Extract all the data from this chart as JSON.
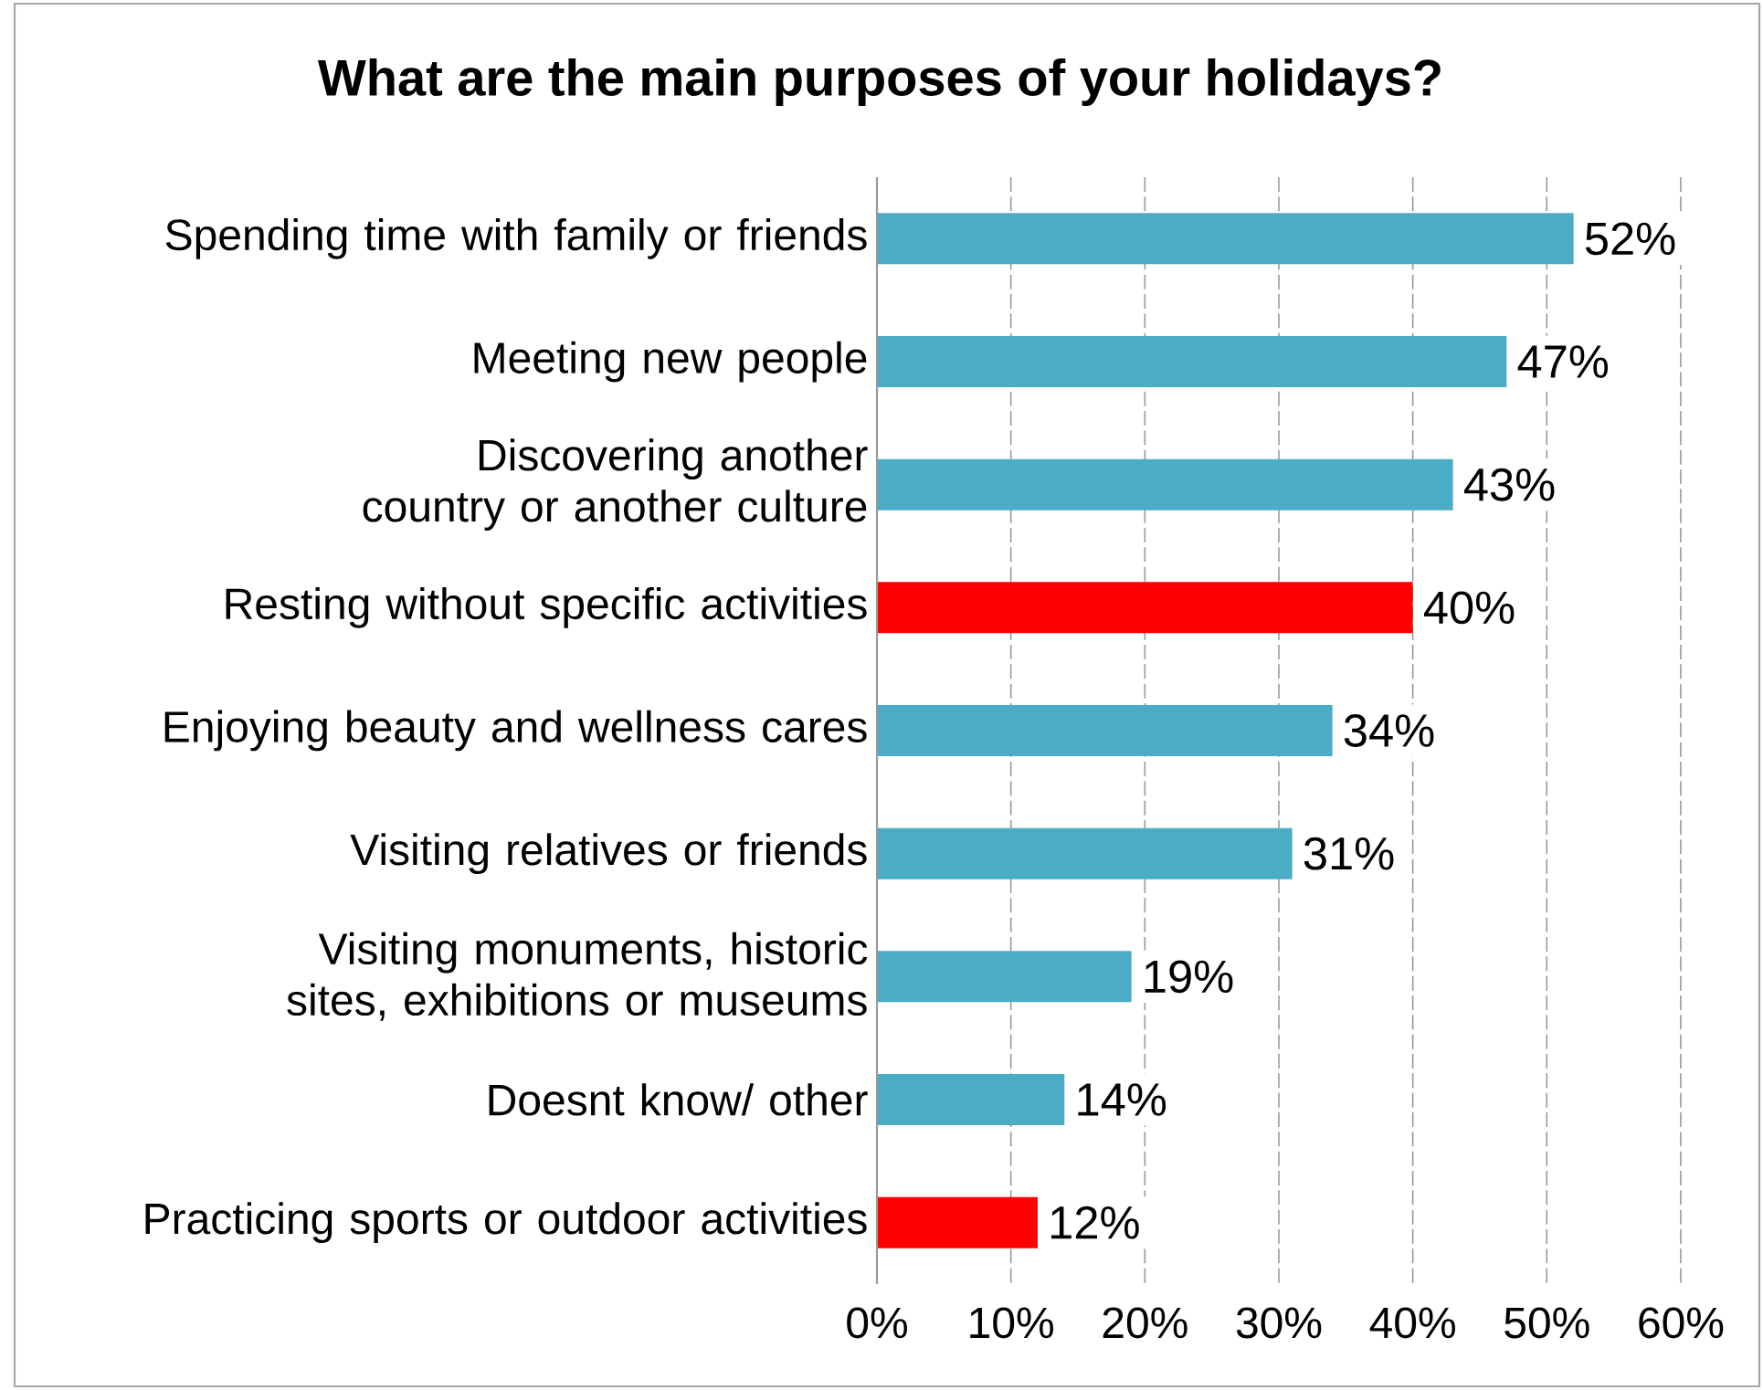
{
  "chart_data": {
    "type": "bar",
    "orientation": "horizontal",
    "title": "What are the main purposes of your holidays?",
    "categories": [
      "Spending time with family or friends",
      "Meeting new people",
      "Discovering another country or another culture",
      "Resting without specific activities",
      "Enjoying beauty and wellness cares",
      "Visiting relatives or friends",
      "Visiting monuments, historic sites, exhibitions or museums",
      "Doesnt know/ other",
      "Practicing sports or outdoor activities"
    ],
    "values": [
      52,
      47,
      43,
      40,
      34,
      31,
      19,
      14,
      12
    ],
    "value_labels": [
      "52%",
      "47%",
      "43%",
      "40%",
      "34%",
      "31%",
      "19%",
      "14%",
      "12%"
    ],
    "colors": [
      "#4bacc6",
      "#4bacc6",
      "#4bacc6",
      "#ff0000",
      "#4bacc6",
      "#4bacc6",
      "#4bacc6",
      "#4bacc6",
      "#ff0000"
    ],
    "xlim": [
      0,
      60
    ],
    "xticks": [
      {
        "value": 0,
        "label": "0%"
      },
      {
        "value": 10,
        "label": "10%"
      },
      {
        "value": 20,
        "label": "20%"
      },
      {
        "value": 30,
        "label": "30%"
      },
      {
        "value": 40,
        "label": "40%"
      },
      {
        "value": 50,
        "label": "50%"
      },
      {
        "value": 60,
        "label": "60%"
      }
    ],
    "grid": "x"
  }
}
